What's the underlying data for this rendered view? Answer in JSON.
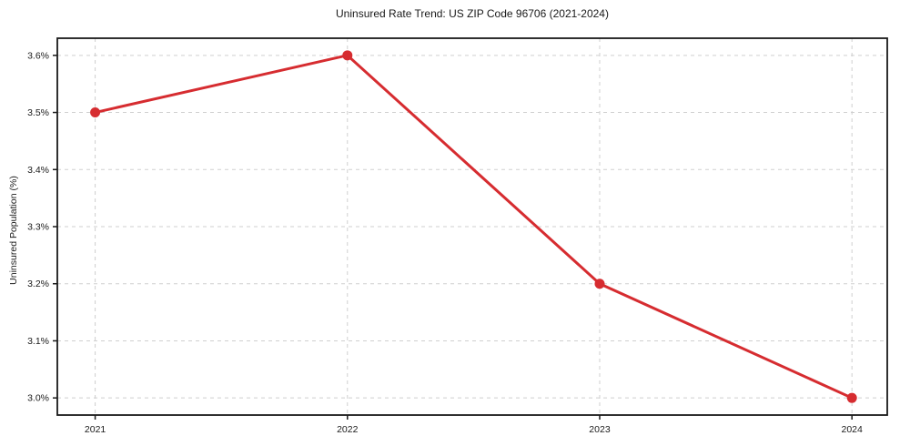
{
  "chart_data": {
    "type": "line",
    "title": "Uninsured Rate Trend: US ZIP Code 96706 (2021-2024)",
    "xlabel": "",
    "ylabel": "Uninsured Population (%)",
    "x": [
      2021,
      2022,
      2023,
      2024
    ],
    "x_tick_labels": [
      "2021",
      "2022",
      "2023",
      "2024"
    ],
    "y_ticks": [
      3.0,
      3.1,
      3.2,
      3.3,
      3.4,
      3.5,
      3.6
    ],
    "y_tick_labels": [
      "3.0%",
      "3.1%",
      "3.2%",
      "3.3%",
      "3.4%",
      "3.5%",
      "3.6%"
    ],
    "series": [
      {
        "name": "Uninsured Population (%)",
        "values": [
          3.5,
          3.6,
          3.2,
          3.0
        ]
      }
    ],
    "xlim": [
      2020.85,
      2024.14
    ],
    "ylim": [
      2.97,
      3.63
    ],
    "grid": true,
    "legend_position": "none",
    "colors": {
      "line": "#d62c30",
      "marker": "#d62c30",
      "grid": "#cfcfcf",
      "axis": "#1a1a1a",
      "text": "#1a1a1a",
      "background": "#ffffff"
    }
  }
}
